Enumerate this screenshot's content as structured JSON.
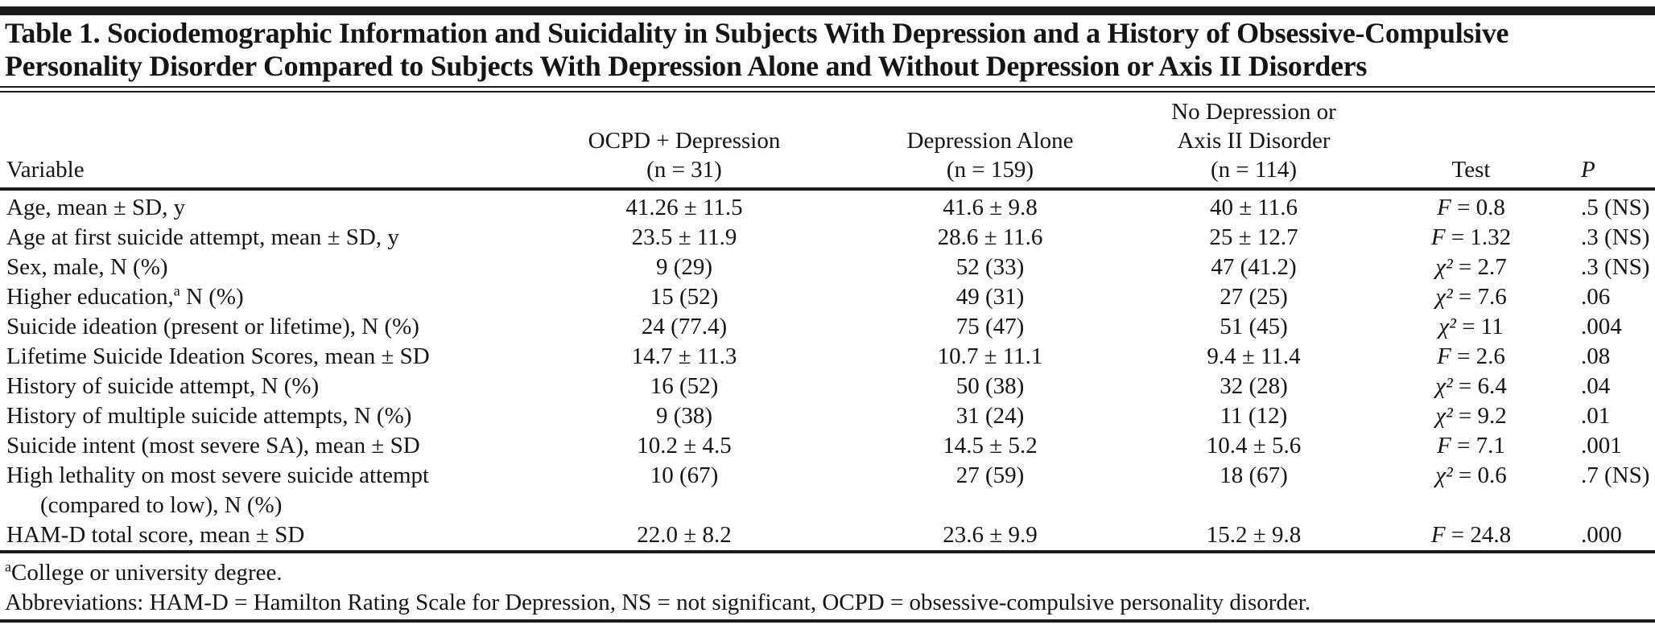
{
  "document": {
    "title_line1": "Table 1. Sociodemographic Information and Suicidality in Subjects With Depression and a History of Obsessive-Compulsive",
    "title_line2": "Personality Disorder Compared to Subjects With Depression Alone and Without Depression or Axis II Disorders"
  },
  "table": {
    "columns": [
      {
        "lines": [
          "Variable"
        ]
      },
      {
        "lines": [
          "OCPD + Depression",
          "(n = 31)"
        ]
      },
      {
        "lines": [
          "Depression Alone",
          "(n = 159)"
        ]
      },
      {
        "lines": [
          "No Depression or",
          "Axis II Disorder",
          "(n = 114)"
        ]
      },
      {
        "lines": [
          "Test"
        ]
      },
      {
        "lines": [
          "P"
        ]
      }
    ],
    "rows": [
      {
        "label": "Age, mean ± SD, y",
        "cells": [
          "41.26 ± 11.5",
          "41.6 ± 9.8",
          "40 ± 11.6",
          "F = 0.8",
          ".5 (NS)"
        ]
      },
      {
        "label": "Age at first suicide attempt, mean ± SD, y",
        "cells": [
          "23.5 ± 11.9",
          "28.6 ± 11.6",
          "25 ± 12.7",
          "F = 1.32",
          ".3 (NS)"
        ]
      },
      {
        "label": "Sex, male, N (%)",
        "cells": [
          "9 (29)",
          "52 (33)",
          "47 (41.2)",
          "χ² = 2.7",
          ".3 (NS)"
        ]
      },
      {
        "label": "Higher education,",
        "sup": "a",
        "label_after": "N (%)",
        "cells": [
          "15 (52)",
          "49 (31)",
          "27 (25)",
          "χ² = 7.6",
          ".06"
        ]
      },
      {
        "label": "Suicide ideation (present or lifetime), N (%)",
        "cells": [
          "24 (77.4)",
          "75 (47)",
          "51 (45)",
          "χ² = 11",
          ".004"
        ]
      },
      {
        "label": "Lifetime Suicide Ideation Scores, mean ± SD",
        "cells": [
          "14.7 ± 11.3",
          "10.7 ± 11.1",
          "9.4 ± 11.4",
          "F = 2.6",
          ".08"
        ]
      },
      {
        "label": "History of suicide attempt, N (%)",
        "cells": [
          "16 (52)",
          "50 (38)",
          "32 (28)",
          "χ² = 6.4",
          ".04"
        ]
      },
      {
        "label": "History of multiple suicide attempts, N (%)",
        "cells": [
          "9 (38)",
          "31 (24)",
          "11 (12)",
          "χ² = 9.2",
          ".01"
        ]
      },
      {
        "label": "Suicide intent (most severe SA), mean ± SD",
        "cells": [
          "10.2 ± 4.5",
          "14.5 ± 5.2",
          "10.4 ± 5.6",
          "F = 7.1",
          ".001"
        ]
      },
      {
        "label": "High lethality on most severe suicide attempt",
        "label_line2": "(compared to low), N (%)",
        "cells": [
          "10 (67)",
          "27 (59)",
          "18 (67)",
          "χ² = 0.6",
          ".7 (NS)"
        ]
      },
      {
        "label": "HAM-D total score, mean ± SD",
        "cells": [
          "22.0 ± 8.2",
          "23.6 ± 9.9",
          "15.2 ± 9.8",
          "F = 24.8",
          ".000"
        ]
      }
    ],
    "footnotes": [
      {
        "sup": "a",
        "text": "College or university degree."
      },
      {
        "text": "Abbreviations: HAM-D = Hamilton Rating Scale for Depression, NS = not significant, OCPD = obsessive-compulsive personality disorder."
      }
    ],
    "ink_color": "#1b1b1b"
  }
}
